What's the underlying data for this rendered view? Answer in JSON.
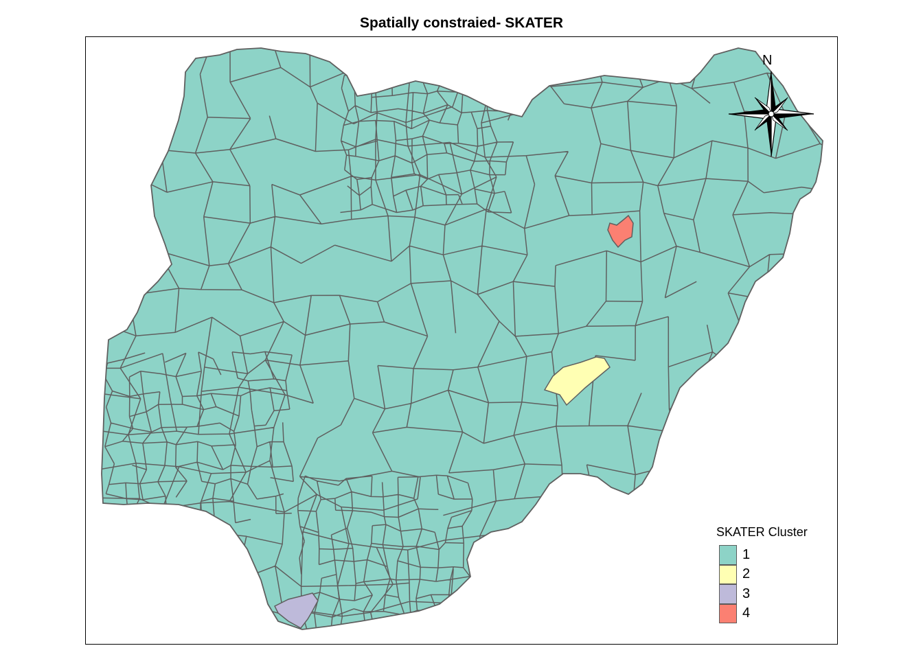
{
  "map": {
    "title": "Spatially constraied- SKATER",
    "region_fill": "#8dd3c7",
    "border_color": "#5f5f5f"
  },
  "legend": {
    "title": "SKATER Cluster",
    "items": [
      {
        "label": "1",
        "color": "#8dd3c7"
      },
      {
        "label": "2",
        "color": "#ffffb3"
      },
      {
        "label": "3",
        "color": "#bebada"
      },
      {
        "label": "4",
        "color": "#fb8072"
      }
    ]
  },
  "compass": {
    "label": "N",
    "icon": "north-arrow-icon"
  }
}
